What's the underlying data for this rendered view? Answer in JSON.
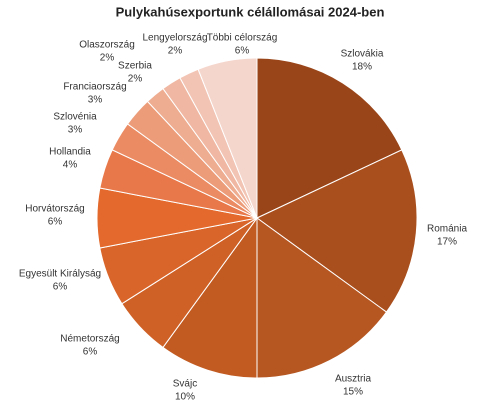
{
  "chart_data": {
    "type": "pie",
    "title": "Pulykahúsexportunk célállomásai 2024-ben",
    "categories": [
      "Szlovákia",
      "Románia",
      "Ausztria",
      "Svájc",
      "Németország",
      "Egyesült Királyság",
      "Horvátország",
      "Hollandia",
      "Szlovénia",
      "Franciaország",
      "Szerbia",
      "Olaszország",
      "Lengyelország",
      "Többi célország"
    ],
    "values": [
      18,
      17,
      15,
      10,
      6,
      6,
      6,
      4,
      3,
      3,
      2,
      2,
      2,
      6
    ],
    "value_labels": [
      "18%",
      "17%",
      "15%",
      "10%",
      "6%",
      "6%",
      "6%",
      "4%",
      "3%",
      "3%",
      "2%",
      "2%",
      "2%",
      "6%"
    ],
    "colors": [
      "#9a4519",
      "#a94f1e",
      "#b65621",
      "#c25b22",
      "#cf6127",
      "#da652a",
      "#e36a2c",
      "#e8784a",
      "#ea8b63",
      "#ec9c79",
      "#eeac90",
      "#f0b8a2",
      "#f2c4b4",
      "#f5d6cc"
    ]
  }
}
